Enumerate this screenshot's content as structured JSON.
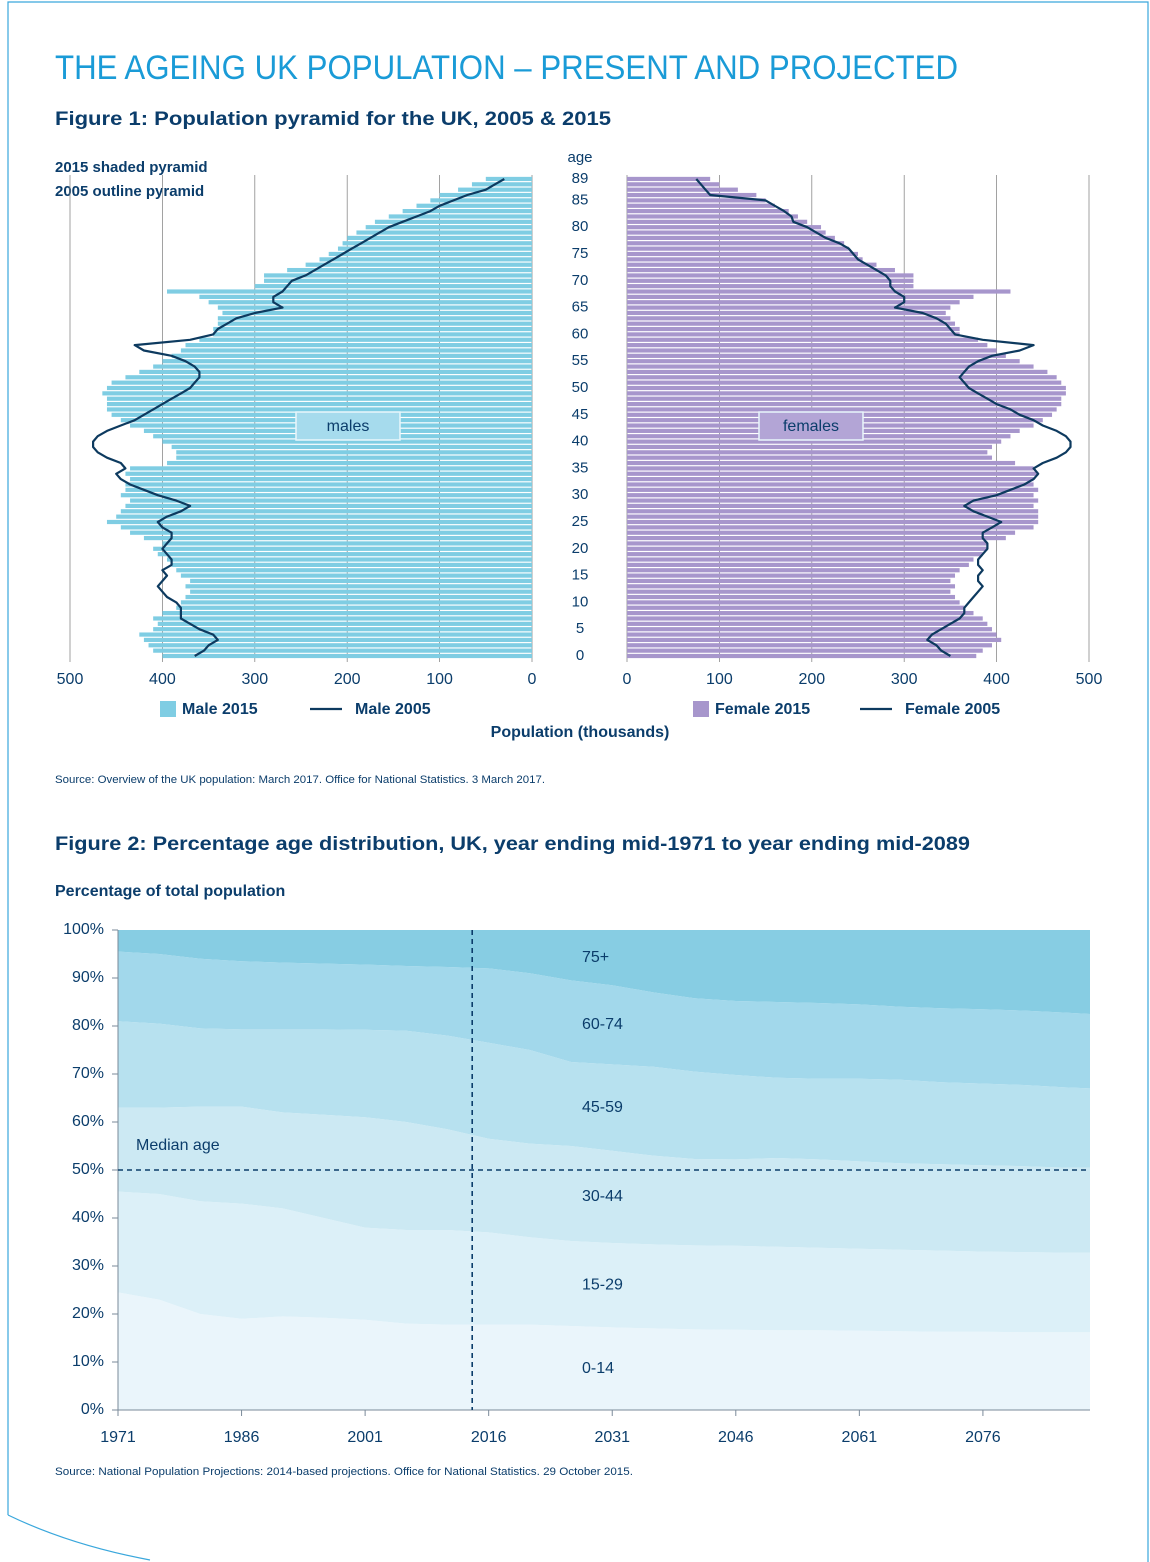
{
  "title": "THE AGEING UK POPULATION – PRESENT AND PROJECTED",
  "chart_data": [
    {
      "type": "pyramid",
      "title": "Figure 1: Population pyramid for the UK, 2005 & 2015",
      "notes": [
        "2015 shaded pyramid",
        "2005 outline pyramid"
      ],
      "y_label": "age",
      "x_label": "Population (thousands)",
      "source": "Source: Overview of the UK population: March 2017. Office for National Statistics. 3 March 2017.",
      "categories": [
        "0",
        null,
        null,
        null,
        null,
        "5",
        null,
        null,
        null,
        null,
        "10",
        null,
        null,
        null,
        null,
        "15",
        null,
        null,
        null,
        null,
        "20",
        null,
        null,
        null,
        null,
        "25",
        null,
        null,
        null,
        null,
        "30",
        null,
        null,
        null,
        null,
        "35",
        null,
        null,
        null,
        null,
        "40",
        null,
        null,
        null,
        null,
        "45",
        null,
        null,
        null,
        null,
        "50",
        null,
        null,
        null,
        null,
        "55",
        null,
        null,
        null,
        null,
        "60",
        null,
        null,
        null,
        null,
        "65",
        null,
        null,
        null,
        null,
        "70",
        null,
        null,
        null,
        null,
        "75",
        null,
        null,
        null,
        null,
        "80",
        null,
        null,
        null,
        null,
        "85",
        null,
        null,
        null,
        "89"
      ],
      "panels": [
        {
          "name": "males",
          "box_color": "#a6dbed",
          "xlim": [
            500,
            0
          ],
          "xticks": [
            500,
            400,
            300,
            200,
            100,
            0
          ],
          "series": [
            {
              "name": "Male 2015",
              "style": "bar",
              "color": "#7fcde3",
              "values": [
                400,
                410,
                415,
                420,
                425,
                410,
                405,
                410,
                400,
                385,
                380,
                375,
                370,
                375,
                370,
                380,
                385,
                390,
                395,
                405,
                410,
                400,
                420,
                435,
                445,
                460,
                450,
                445,
                440,
                435,
                445,
                440,
                440,
                435,
                440,
                435,
                395,
                385,
                385,
                390,
                400,
                410,
                420,
                435,
                445,
                455,
                460,
                460,
                460,
                465,
                460,
                455,
                440,
                425,
                410,
                400,
                390,
                380,
                375,
                360,
                345,
                345,
                340,
                340,
                335,
                340,
                350,
                360,
                395,
                300,
                290,
                290,
                265,
                245,
                230,
                220,
                210,
                205,
                200,
                190,
                180,
                170,
                155,
                140,
                125,
                110,
                100,
                80,
                65,
                50
              ]
            },
            {
              "name": "Male 2005",
              "style": "line",
              "color": "#0d3a5f",
              "values": [
                365,
                355,
                350,
                340,
                345,
                360,
                370,
                380,
                380,
                380,
                385,
                395,
                400,
                405,
                400,
                395,
                400,
                390,
                390,
                395,
                400,
                395,
                390,
                390,
                400,
                405,
                395,
                380,
                370,
                385,
                405,
                420,
                435,
                445,
                450,
                440,
                445,
                460,
                470,
                475,
                475,
                470,
                460,
                445,
                430,
                420,
                410,
                400,
                390,
                380,
                370,
                365,
                360,
                360,
                365,
                375,
                390,
                420,
                430,
                370,
                345,
                340,
                330,
                320,
                300,
                270,
                280,
                280,
                270,
                265,
                260,
                245,
                235,
                225,
                215,
                205,
                195,
                185,
                175,
                165,
                155,
                140,
                125,
                110,
                100,
                85,
                70,
                50,
                40,
                30
              ]
            }
          ]
        },
        {
          "name": "females",
          "box_color": "#b3a5d6",
          "xlim": [
            0,
            500
          ],
          "xticks": [
            0,
            100,
            200,
            300,
            400,
            500
          ],
          "series": [
            {
              "name": "Female 2015",
              "style": "bar",
              "color": "#a796cc",
              "values": [
                378,
                385,
                395,
                405,
                400,
                395,
                390,
                385,
                375,
                365,
                360,
                355,
                350,
                355,
                350,
                355,
                360,
                370,
                375,
                385,
                390,
                390,
                410,
                420,
                440,
                445,
                445,
                445,
                440,
                445,
                440,
                445,
                440,
                440,
                445,
                440,
                420,
                395,
                390,
                395,
                405,
                415,
                425,
                440,
                450,
                460,
                465,
                470,
                470,
                475,
                475,
                470,
                465,
                455,
                440,
                425,
                410,
                400,
                390,
                380,
                360,
                360,
                355,
                350,
                345,
                350,
                360,
                375,
                415,
                310,
                310,
                310,
                290,
                270,
                255,
                250,
                240,
                235,
                225,
                215,
                210,
                195,
                185,
                175,
                160,
                150,
                140,
                120,
                100,
                90
              ]
            },
            {
              "name": "Female 2005",
              "style": "line",
              "color": "#0d3a5f",
              "values": [
                350,
                340,
                335,
                325,
                330,
                340,
                350,
                360,
                365,
                365,
                370,
                375,
                380,
                385,
                380,
                380,
                385,
                380,
                380,
                385,
                390,
                390,
                385,
                385,
                395,
                405,
                390,
                375,
                365,
                375,
                400,
                415,
                430,
                440,
                445,
                440,
                450,
                465,
                475,
                480,
                480,
                475,
                465,
                450,
                440,
                425,
                415,
                400,
                390,
                380,
                370,
                365,
                360,
                365,
                370,
                380,
                395,
                425,
                440,
                385,
                355,
                350,
                345,
                335,
                320,
                290,
                300,
                300,
                290,
                285,
                285,
                280,
                270,
                260,
                250,
                245,
                240,
                230,
                215,
                205,
                195,
                180,
                178,
                170,
                160,
                150,
                90,
                85,
                80,
                75
              ]
            }
          ]
        }
      ]
    },
    {
      "type": "area",
      "title": "Figure 2: Percentage age distribution, UK, year ending mid-1971 to year ending mid-2089",
      "y_label": "Percentage of total population",
      "source": "Source: National Population Projections: 2014-based projections. Office for National Statistics. 29 October 2015.",
      "stacked": true,
      "x": [
        1971,
        1976,
        1981,
        1986,
        1991,
        1996,
        2001,
        2006,
        2011,
        2016,
        2021,
        2026,
        2031,
        2036,
        2041,
        2046,
        2051,
        2056,
        2061,
        2066,
        2071,
        2076,
        2081,
        2086,
        2089
      ],
      "xlim": [
        1971,
        2089
      ],
      "xticks": [
        1971,
        1986,
        2001,
        2016,
        2031,
        2046,
        2061,
        2076
      ],
      "ylim": [
        0,
        100
      ],
      "yticks": [
        {
          "value": 0,
          "label": "0%"
        },
        {
          "value": 10,
          "label": "10%"
        },
        {
          "value": 20,
          "label": "20%"
        },
        {
          "value": 30,
          "label": "30%"
        },
        {
          "value": 40,
          "label": "40%"
        },
        {
          "value": 50,
          "label": "50%"
        },
        {
          "value": 60,
          "label": "60%"
        },
        {
          "value": 70,
          "label": "70%"
        },
        {
          "value": 80,
          "label": "80%"
        },
        {
          "value": 90,
          "label": "90%"
        },
        {
          "value": 100,
          "label": "100%"
        }
      ],
      "hline": {
        "value": 50,
        "label": "Median age"
      },
      "vline": 2014,
      "series": [
        {
          "name": "0-14",
          "color": "#eaf5fb",
          "values": [
            24.5,
            23,
            20,
            19,
            19.5,
            19.2,
            18.8,
            18,
            17.8,
            17.8,
            17.8,
            17.5,
            17.2,
            17,
            16.8,
            16.7,
            16.6,
            16.6,
            16.5,
            16.4,
            16.3,
            16.3,
            16.2,
            16.2,
            16.2
          ]
        },
        {
          "name": "15-29",
          "color": "#dcf0f8",
          "values": [
            21,
            22,
            23.5,
            24,
            22.5,
            20.8,
            19.2,
            19.5,
            19.7,
            19.2,
            18.2,
            17.7,
            17.6,
            17.5,
            17.5,
            17.5,
            17.4,
            17.2,
            17.1,
            17,
            16.9,
            16.7,
            16.7,
            16.6,
            16.6
          ]
        },
        {
          "name": "30-44",
          "color": "#cce9f3",
          "values": [
            17.5,
            18,
            19.7,
            20.2,
            20,
            21.5,
            23,
            22.5,
            21,
            19.5,
            19.5,
            19.8,
            19.2,
            18.5,
            18,
            18,
            18.5,
            18.4,
            18.2,
            18,
            18,
            18,
            17.9,
            17.7,
            17.7
          ]
        },
        {
          "name": "45-59",
          "color": "#b7e1ef",
          "values": [
            18,
            17.5,
            16.3,
            16.1,
            17.3,
            17.8,
            18.2,
            19,
            19.5,
            20,
            19.5,
            17.5,
            18,
            18.5,
            18.2,
            17.6,
            16.7,
            16.8,
            17.2,
            17.4,
            17.1,
            17,
            16.9,
            16.7,
            16.5
          ]
        },
        {
          "name": "60-74",
          "color": "#a2d8eb",
          "values": [
            14.5,
            14.5,
            14.5,
            14.2,
            13.9,
            13.7,
            13.6,
            13.5,
            14.3,
            15.5,
            16,
            17,
            16.5,
            15.5,
            15.3,
            15.4,
            15.8,
            15.8,
            15.5,
            15.2,
            15.4,
            15.5,
            15.5,
            15.6,
            15.5
          ]
        },
        {
          "name": "75+",
          "color": "#87cde3",
          "values": [
            4.5,
            5,
            6,
            6.5,
            6.8,
            7,
            7.2,
            7.5,
            7.7,
            8,
            9,
            10.5,
            11.5,
            13,
            14.2,
            14.8,
            15,
            15.2,
            15.5,
            16,
            16.3,
            16.5,
            16.8,
            17.2,
            17.5
          ]
        }
      ]
    }
  ]
}
